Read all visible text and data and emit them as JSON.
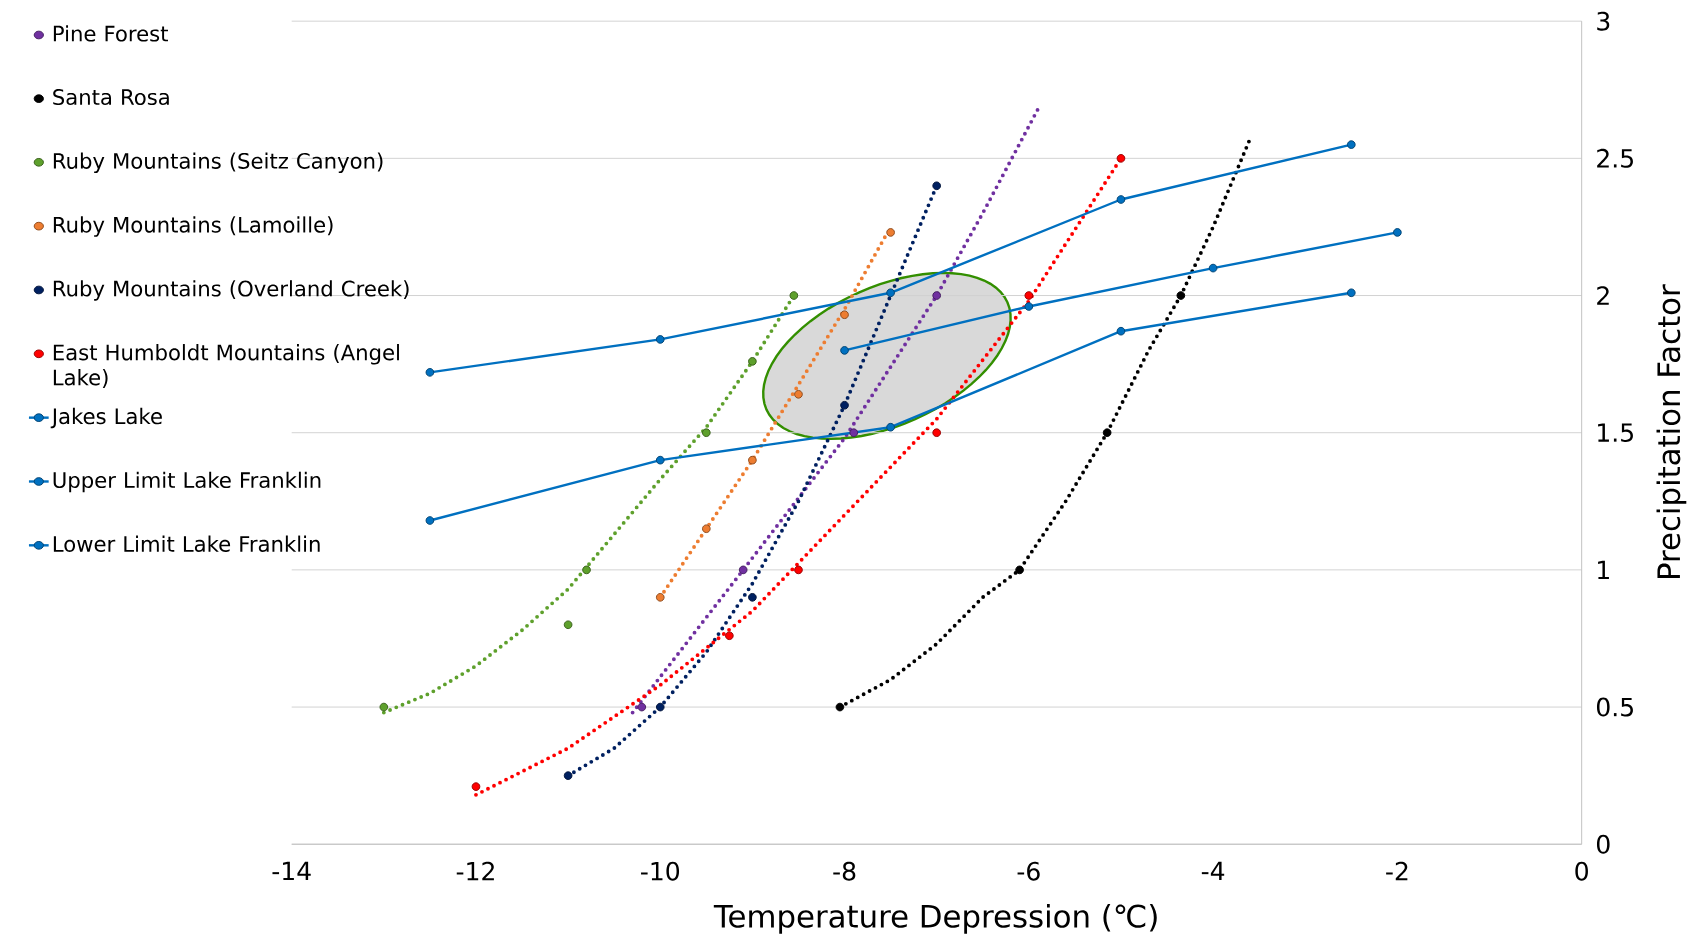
{
  "chart_data": {
    "type": "scatter",
    "xlabel": "Temperature Depression (℃)",
    "ylabel": "Precipitation Factor",
    "xlim": [
      -14,
      0
    ],
    "xticks": [
      -14,
      -12,
      -10,
      -8,
      -6,
      -4,
      -2,
      0
    ],
    "ylim": [
      0,
      3
    ],
    "yticks": [
      0,
      0.5,
      1,
      1.5,
      2,
      2.5,
      3
    ],
    "grid": "y",
    "legend": "left",
    "series": [
      {
        "name": "Pine Forest",
        "marker": "circle",
        "color": "#7030a0",
        "x": [
          -10.2,
          -9.1,
          -7.9,
          -7
        ],
        "values": [
          0.5,
          1,
          1.5,
          2
        ]
      },
      {
        "name": "Santa Rosa",
        "marker": "circle",
        "color": "#000000",
        "x": [
          -8.05,
          -6.1,
          -5.15,
          -4.35
        ],
        "values": [
          0.5,
          1,
          1.5,
          2
        ]
      },
      {
        "name": "Ruby Mountains (Seitz Canyon)",
        "marker": "circle",
        "color": "#5ea02c",
        "x": [
          -13,
          -11,
          -10.8,
          -9.5,
          -9,
          -8.55
        ],
        "values": [
          0.5,
          0.8,
          1,
          1.5,
          1.76,
          2
        ]
      },
      {
        "name": "Ruby Mountains (Lamoille)",
        "marker": "circle",
        "color": "#ed7d31",
        "x": [
          -10,
          -9.5,
          -9,
          -8.5,
          -8,
          -7.5
        ],
        "values": [
          0.9,
          1.15,
          1.4,
          1.64,
          1.93,
          2.23
        ]
      },
      {
        "name": "Ruby Mountains (Overland Creek)",
        "marker": "circle",
        "color": "#002060",
        "x": [
          -11,
          -10,
          -9,
          -8,
          -7
        ],
        "values": [
          0.25,
          0.5,
          0.9,
          1.6,
          2.4
        ]
      },
      {
        "name": "East Humboldt Mountains (Angel Lake)",
        "marker": "circle",
        "color": "#ff0000",
        "x": [
          -12,
          -9.25,
          -8.5,
          -7,
          -6,
          -5
        ],
        "values": [
          0.21,
          0.76,
          1,
          1.5,
          2,
          2.5
        ]
      },
      {
        "name": "Jakes Lake",
        "type": "line",
        "marker": "circle",
        "line_style": "solid",
        "color": "#0070c0",
        "x": [
          -8,
          -6,
          -4,
          -2
        ],
        "values": [
          1.8,
          1.96,
          2.1,
          2.23
        ]
      },
      {
        "name": "Upper Limit Lake Franklin",
        "type": "line",
        "marker": "circle",
        "line_style": "solid",
        "color": "#0070c0",
        "x": [
          -12.5,
          -10,
          -7.5,
          -5,
          -2.5
        ],
        "values": [
          1.72,
          1.84,
          2.01,
          2.35,
          2.55
        ]
      },
      {
        "name": "Lower Limit Lake Franklin",
        "type": "line",
        "marker": "circle",
        "line_style": "solid",
        "color": "#0070c0",
        "x": [
          -12.5,
          -10,
          -7.5,
          -5,
          -2.5
        ],
        "values": [
          1.18,
          1.4,
          1.52,
          1.87,
          2.01
        ]
      },
      {
        "type": "line",
        "marker": "none",
        "line_style": "dotted",
        "color": "#7030a0",
        "x": [
          -10.3,
          -9.1,
          -8,
          -7,
          -6.5,
          -5.9
        ],
        "values": [
          0.48,
          1,
          1.48,
          2,
          2.3,
          2.68
        ]
      },
      {
        "type": "line",
        "marker": "none",
        "line_style": "dotted",
        "color": "#000000",
        "x": [
          -8.05,
          -7.5,
          -7,
          -6.5,
          -6.1,
          -5.6,
          -5.15,
          -4.7,
          -4.35,
          -4,
          -3.6
        ],
        "values": [
          0.5,
          0.6,
          0.73,
          0.9,
          1,
          1.25,
          1.5,
          1.8,
          2,
          2.25,
          2.57
        ]
      },
      {
        "type": "line",
        "marker": "none",
        "line_style": "dotted",
        "color": "#5ea02c",
        "x": [
          -13,
          -12.5,
          -12,
          -11.5,
          -11,
          -10.5,
          -10,
          -9.5,
          -9,
          -8.55
        ],
        "values": [
          0.48,
          0.55,
          0.65,
          0.78,
          0.93,
          1.13,
          1.33,
          1.52,
          1.76,
          2
        ]
      },
      {
        "type": "line",
        "marker": "none",
        "line_style": "dotted",
        "color": "#ed7d31",
        "x": [
          -10,
          -9,
          -8,
          -7.55
        ],
        "values": [
          0.9,
          1.4,
          1.95,
          2.22
        ]
      },
      {
        "type": "line",
        "marker": "none",
        "line_style": "dotted",
        "color": "#002060",
        "x": [
          -11,
          -10.5,
          -10,
          -9.5,
          -9,
          -8.5,
          -8,
          -7.5,
          -7
        ],
        "values": [
          0.25,
          0.35,
          0.5,
          0.7,
          0.95,
          1.25,
          1.6,
          2,
          2.4
        ]
      },
      {
        "type": "line",
        "marker": "none",
        "line_style": "dotted",
        "color": "#ff0000",
        "x": [
          -12,
          -11,
          -10,
          -9,
          -8,
          -7,
          -6,
          -5
        ],
        "values": [
          0.18,
          0.35,
          0.58,
          0.85,
          1.2,
          1.55,
          1.98,
          2.5
        ]
      }
    ]
  }
}
